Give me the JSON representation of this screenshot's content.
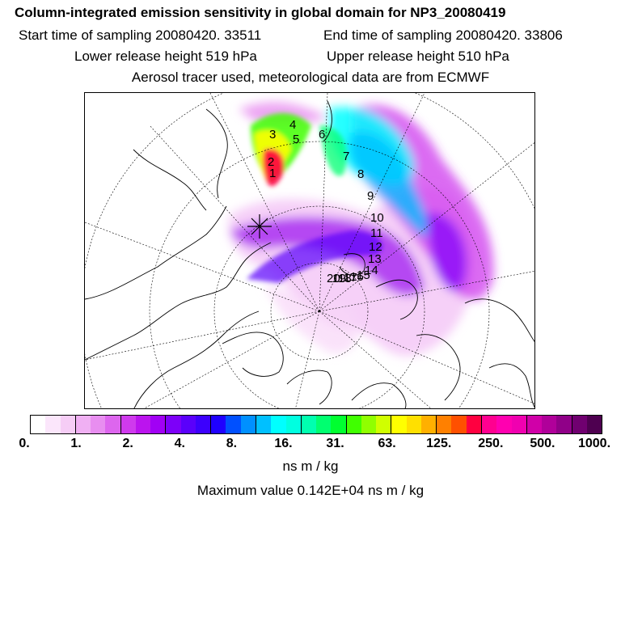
{
  "header": {
    "title": "Column-integrated emission sensitivity in global domain for NP3_20080419",
    "start_label": "Start time of sampling 20080420. 33511",
    "end_label": "End time of sampling 20080420. 33806",
    "lower_label": "Lower release height  519 hPa",
    "upper_label": "Upper release height  510 hPa",
    "aerosol_label": "Aerosol tracer used, meteorological data are from ECMWF"
  },
  "map": {
    "day_markers": [
      "1",
      "2",
      "3",
      "4",
      "5",
      "6",
      "7",
      "8",
      "9",
      "10",
      "11",
      "12",
      "13",
      "14",
      "15",
      "16",
      "17",
      "18",
      "19",
      "20"
    ],
    "release_marker": "release-point"
  },
  "colorbar": {
    "colors": [
      "#ffffff",
      "#fbe6fb",
      "#f6cdf6",
      "#f0b0f3",
      "#e88ef0",
      "#dd66ee",
      "#cf3aed",
      "#bb14ee",
      "#a100f5",
      "#7d00f9",
      "#5a00fb",
      "#3c00fd",
      "#1f00ff",
      "#0050ff",
      "#0090ff",
      "#00c0ff",
      "#00ffff",
      "#00ffe0",
      "#00ffb0",
      "#00ff70",
      "#00ff30",
      "#40ff00",
      "#90ff00",
      "#d0ff00",
      "#ffff00",
      "#ffe000",
      "#ffb000",
      "#ff8000",
      "#ff5000",
      "#ff0040",
      "#ff0090",
      "#ff00b0",
      "#f000b0",
      "#d000a8",
      "#b0009a",
      "#900088",
      "#700070",
      "#4e0050"
    ],
    "ticks": [
      "0.",
      "1.",
      "2.",
      "4.",
      "8.",
      "16.",
      "31.",
      "63.",
      "125.",
      "250.",
      "500.",
      "1000."
    ]
  },
  "footer": {
    "unit": "ns m / kg",
    "max_value": "Maximum value  0.142E+04 ns m / kg"
  }
}
